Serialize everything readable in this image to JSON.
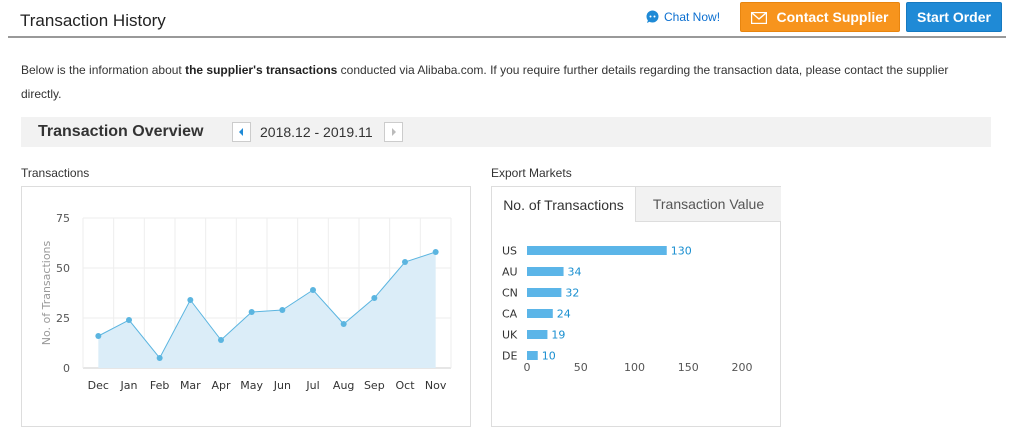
{
  "header": {
    "title": "Transaction History",
    "chat_label": "Chat Now!",
    "contact_label": "Contact Supplier",
    "start_label": "Start Order"
  },
  "intro": {
    "text_before": "Below is the information about ",
    "text_bold": "the supplier's transactions",
    "text_after": " conducted via Alibaba.com. If you require further details regarding the transaction data, please contact the supplier directly."
  },
  "overview": {
    "title": "Transaction Overview",
    "period": "2018.12 - 2019.11"
  },
  "transactions_section": {
    "label": "Transactions"
  },
  "export_section": {
    "label": "Export Markets",
    "tabs": [
      {
        "label": "No. of Transactions",
        "active": true
      },
      {
        "label": "Transaction Value",
        "active": false
      }
    ]
  },
  "colors": {
    "accent_orange": "#f7941d",
    "accent_blue": "#1f8ad6",
    "line": "#5bb5e0",
    "area": "#dbedf8",
    "bar": "#5bb5e8",
    "bar_label": "#1a8fd0"
  },
  "chart_data": [
    {
      "type": "area",
      "title": "",
      "xlabel": "",
      "ylabel": "No. of Transactions",
      "categories": [
        "Dec",
        "Jan",
        "Feb",
        "Mar",
        "Apr",
        "May",
        "Jun",
        "Jul",
        "Aug",
        "Sep",
        "Oct",
        "Nov"
      ],
      "values": [
        16,
        24,
        5,
        34,
        14,
        28,
        29,
        39,
        22,
        35,
        53,
        58
      ],
      "ylim": [
        0,
        75
      ],
      "yticks": [
        0,
        25,
        50,
        75
      ],
      "grid": true
    },
    {
      "type": "bar",
      "orientation": "horizontal",
      "categories": [
        "US",
        "AU",
        "CN",
        "CA",
        "UK",
        "DE"
      ],
      "values": [
        130,
        34,
        32,
        24,
        19,
        10
      ],
      "xlim": [
        0,
        200
      ],
      "xticks": [
        0,
        50,
        100,
        150,
        200
      ],
      "grid": false
    }
  ]
}
